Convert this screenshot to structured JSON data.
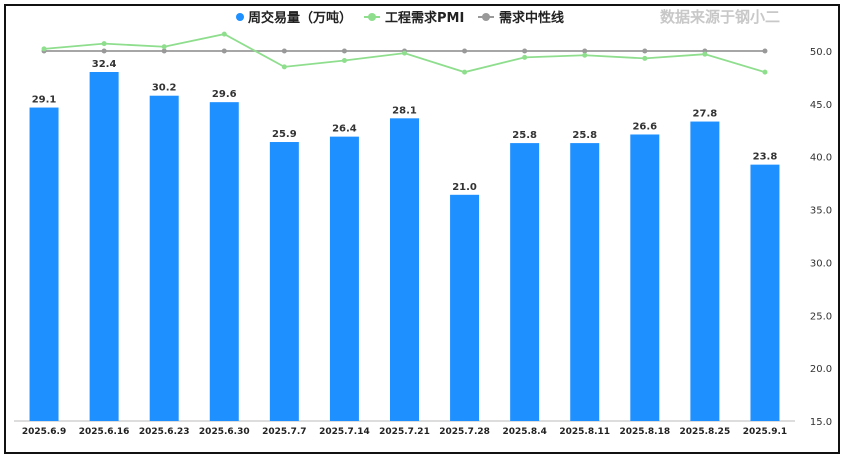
{
  "source_note": "数据来源于钢小二",
  "chart_data": {
    "type": "bar",
    "categories": [
      "2025.6.9",
      "2025.6.16",
      "2025.6.23",
      "2025.6.30",
      "2025.7.7",
      "2025.7.14",
      "2025.7.21",
      "2025.7.28",
      "2025.8.4",
      "2025.8.11",
      "2025.8.18",
      "2025.8.25",
      "2025.9.1"
    ],
    "series": [
      {
        "name": "周交易量（万吨）",
        "type": "bar",
        "axis": "left",
        "color": "#1e90ff",
        "values": [
          29.1,
          32.4,
          30.2,
          29.6,
          25.9,
          26.4,
          28.1,
          21.0,
          25.8,
          25.8,
          26.6,
          27.8,
          23.8
        ]
      },
      {
        "name": "工程需求PMI",
        "type": "line",
        "axis": "right",
        "color": "#8ede8e",
        "values": [
          50.2,
          50.7,
          50.4,
          51.6,
          48.5,
          49.1,
          49.8,
          48.0,
          49.4,
          49.6,
          49.3,
          49.7,
          48.0
        ]
      },
      {
        "name": "需求中性线",
        "type": "line",
        "axis": "right",
        "color": "#999999",
        "values": [
          50,
          50,
          50,
          50,
          50,
          50,
          50,
          50,
          50,
          50,
          50,
          50,
          50
        ]
      }
    ],
    "left_ylim": [
      0,
      35
    ],
    "right_ylim": [
      15,
      50
    ],
    "right_ticks": [
      "15.0",
      "20.0",
      "25.0",
      "30.0",
      "35.0",
      "40.0",
      "45.0",
      "50.0"
    ],
    "grid": false,
    "legend_position": "top"
  },
  "colors": {
    "bar": "#1e90ff",
    "pmi": "#8ede8e",
    "neutral": "#999999",
    "frame": "#111111"
  }
}
